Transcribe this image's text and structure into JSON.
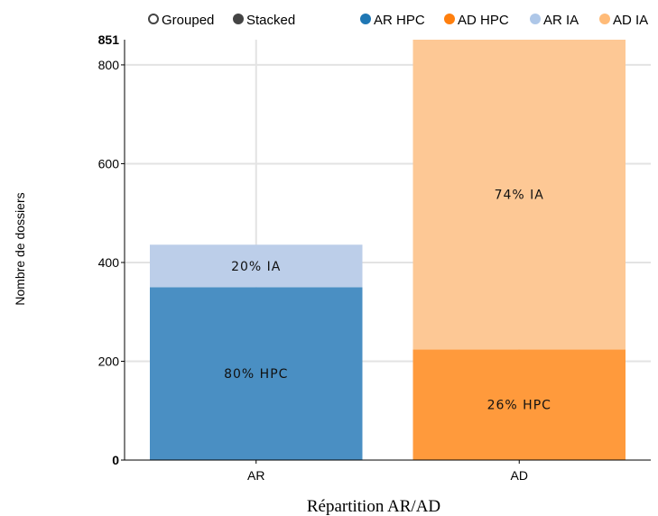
{
  "legend": {
    "controls": [
      {
        "label": "Grouped",
        "selected": false
      },
      {
        "label": "Stacked",
        "selected": true
      }
    ]
  },
  "chart_data": {
    "type": "bar",
    "stacked": true,
    "categories": [
      "AR",
      "AD"
    ],
    "series": [
      {
        "name": "AR HPC",
        "color": "#4a8fc3",
        "legend_color": "#1f77b4",
        "values": [
          350,
          0
        ],
        "labels": [
          "80% HPC",
          ""
        ]
      },
      {
        "name": "AD HPC",
        "color": "#ff9a3c",
        "legend_color": "#ff7f0e",
        "values": [
          0,
          224
        ],
        "labels": [
          "",
          "26% HPC"
        ]
      },
      {
        "name": "AR IA",
        "color": "#bccee9",
        "legend_color": "#aec7e8",
        "values": [
          86,
          0
        ],
        "labels": [
          "20% IA",
          ""
        ]
      },
      {
        "name": "AD IA",
        "color": "#fdc895",
        "legend_color": "#ffbb78",
        "values": [
          0,
          627
        ],
        "labels": [
          "",
          "74% IA"
        ]
      }
    ],
    "xlabel": "Répartition AR/AD",
    "ylabel": "Nombre de dossiers",
    "ylim": [
      0,
      851
    ],
    "yticks": [
      0,
      200,
      400,
      600,
      800
    ],
    "ymax_label": "851",
    "grid": true,
    "legend_position": "top"
  }
}
